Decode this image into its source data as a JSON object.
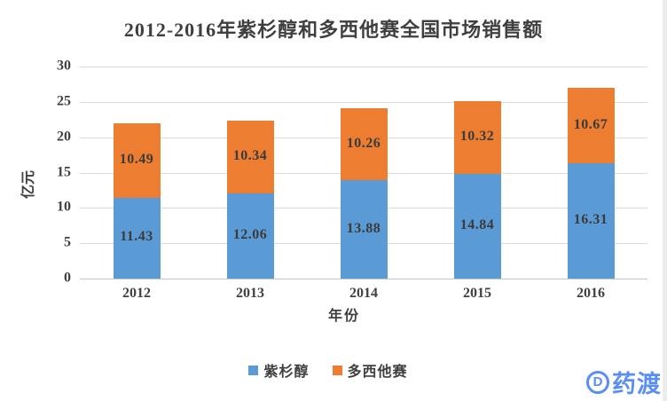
{
  "title": "2012-2016年紫杉醇和多西他赛全国市场销售额",
  "chart_data": {
    "type": "bar",
    "stacked": true,
    "categories": [
      "2012",
      "2013",
      "2014",
      "2015",
      "2016"
    ],
    "series": [
      {
        "name": "紫杉醇",
        "color": "#5b9bd5",
        "values": [
          11.43,
          12.06,
          13.88,
          14.84,
          16.31
        ]
      },
      {
        "name": "多西他赛",
        "color": "#ed7d31",
        "values": [
          10.49,
          10.34,
          10.26,
          10.32,
          10.67
        ]
      }
    ],
    "title": "2012-2016年紫杉醇和多西他赛全国市场销售额",
    "xlabel": "年份",
    "ylabel": "亿元",
    "ylim": [
      0,
      30
    ],
    "ytick_step": 5,
    "yticks": [
      0,
      5,
      10,
      15,
      20,
      25,
      30
    ],
    "grid": true,
    "gridline_color": "#d9d9d9",
    "data_labels": true,
    "legend_position": "bottom"
  },
  "watermark": {
    "text": "药渡",
    "icon_letter": "D",
    "color": "#5b8ef2"
  }
}
